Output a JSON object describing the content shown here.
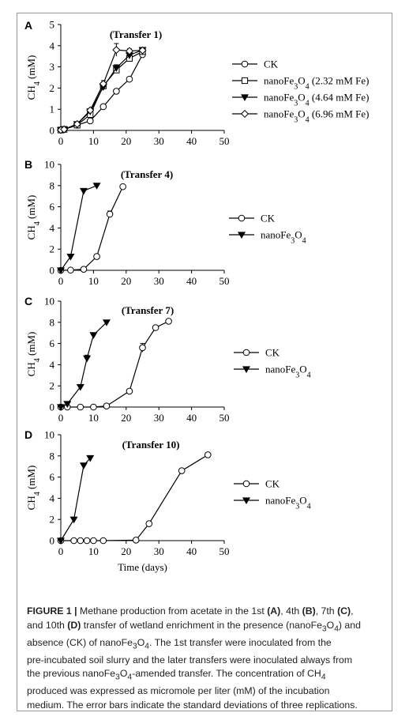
{
  "chart_data": [
    {
      "type": "line",
      "panel": "A",
      "title": "(Transfer 1)",
      "xlabel": "",
      "ylabel": "CH4 (mM)",
      "xlim": [
        0,
        50
      ],
      "ylim": [
        0,
        5
      ],
      "xticks": [
        0,
        10,
        20,
        30,
        40,
        50
      ],
      "yticks": [
        0,
        1,
        2,
        3,
        4,
        5
      ],
      "grid": false,
      "legend_position": "right",
      "series": [
        {
          "name": "CK",
          "marker": "circle-open",
          "x": [
            0,
            1,
            5,
            9,
            13,
            17,
            21,
            25
          ],
          "y": [
            0.02,
            0.05,
            0.25,
            0.45,
            1.12,
            1.85,
            2.42,
            3.58
          ],
          "err": [
            0,
            0,
            0.03,
            0.05,
            0.08,
            0.08,
            0.1,
            0.1
          ]
        },
        {
          "name": "nanoFe3O4 (2.32 mM Fe)",
          "marker": "square-open",
          "x": [
            0,
            1,
            5,
            9,
            13,
            17,
            21,
            25
          ],
          "y": [
            0.02,
            0.05,
            0.25,
            0.75,
            2.1,
            2.85,
            3.4,
            3.72
          ],
          "err": [
            0,
            0,
            0.03,
            0.08,
            0.12,
            0.12,
            0.1,
            0.1
          ]
        },
        {
          "name": "nanoFe3O4 (4.64 mM Fe)",
          "marker": "triangle-down-filled",
          "x": [
            0,
            1,
            5,
            9,
            13,
            17,
            21,
            25
          ],
          "y": [
            0.02,
            0.05,
            0.3,
            0.9,
            2.05,
            2.95,
            3.55,
            3.8
          ],
          "err": [
            0,
            0,
            0.03,
            0.08,
            0.12,
            0.15,
            0.1,
            0.1
          ]
        },
        {
          "name": "nanoFe3O4 (6.96 mM Fe)",
          "marker": "diamond-open",
          "x": [
            0,
            1,
            5,
            9,
            13,
            17,
            21,
            25
          ],
          "y": [
            0.02,
            0.05,
            0.3,
            0.95,
            2.2,
            3.8,
            3.75,
            3.78
          ],
          "err": [
            0,
            0,
            0.03,
            0.08,
            0.15,
            0.3,
            0.1,
            0.1
          ]
        }
      ]
    },
    {
      "type": "line",
      "panel": "B",
      "title": "(Transfer 4)",
      "xlabel": "",
      "ylabel": "CH4 (mM)",
      "xlim": [
        0,
        50
      ],
      "ylim": [
        0,
        10
      ],
      "xticks": [
        0,
        10,
        20,
        30,
        40,
        50
      ],
      "yticks": [
        0,
        2,
        4,
        6,
        8,
        10
      ],
      "grid": false,
      "legend_position": "right",
      "series": [
        {
          "name": "CK",
          "marker": "circle-open",
          "x": [
            0,
            3,
            7,
            11,
            15,
            19
          ],
          "y": [
            0,
            0.02,
            0.1,
            1.3,
            5.3,
            7.9
          ],
          "err": [
            0,
            0,
            0,
            0.1,
            0.3,
            0.1
          ]
        },
        {
          "name": "nanoFe3O4",
          "marker": "triangle-down-filled",
          "x": [
            0,
            3,
            7,
            11
          ],
          "y": [
            0,
            1.3,
            7.5,
            8.0
          ],
          "err": [
            0,
            0.1,
            0.2,
            0.1
          ]
        }
      ]
    },
    {
      "type": "line",
      "panel": "C",
      "title": "(Transfer 7)",
      "xlabel": "",
      "ylabel": "CH4 (mM)",
      "xlim": [
        0,
        50
      ],
      "ylim": [
        0,
        10
      ],
      "xticks": [
        0,
        10,
        20,
        30,
        40,
        50
      ],
      "yticks": [
        0,
        2,
        4,
        6,
        8,
        10
      ],
      "grid": false,
      "legend_position": "right",
      "series": [
        {
          "name": "CK",
          "marker": "circle-open",
          "x": [
            0,
            2,
            6,
            10,
            14,
            21,
            25,
            29,
            33
          ],
          "y": [
            0,
            0,
            0,
            0,
            0.1,
            1.5,
            5.6,
            7.5,
            8.1
          ],
          "err": [
            0,
            0,
            0,
            0,
            0,
            0.1,
            0.4,
            0.2,
            0.1
          ]
        },
        {
          "name": "nanoFe3O4",
          "marker": "triangle-down-filled",
          "x": [
            0,
            2,
            6,
            8,
            10,
            14
          ],
          "y": [
            0,
            0.3,
            1.9,
            4.6,
            6.8,
            8.0
          ],
          "err": [
            0,
            0,
            0.1,
            0.3,
            0.2,
            0.1
          ]
        }
      ]
    },
    {
      "type": "line",
      "panel": "D",
      "title": "(Transfer 10)",
      "xlabel": "Time (days)",
      "ylabel": "CH4 (mM)",
      "xlim": [
        0,
        50
      ],
      "ylim": [
        0,
        10
      ],
      "xticks": [
        0,
        10,
        20,
        30,
        40,
        50
      ],
      "yticks": [
        0,
        2,
        4,
        6,
        8,
        10
      ],
      "grid": false,
      "legend_position": "right",
      "series": [
        {
          "name": "CK",
          "marker": "circle-open",
          "x": [
            0,
            4,
            6,
            8,
            10,
            13,
            23,
            27,
            37,
            45
          ],
          "y": [
            0,
            0,
            0,
            0,
            0,
            0,
            0.05,
            1.6,
            6.6,
            8.1
          ],
          "err": [
            0,
            0,
            0,
            0,
            0,
            0,
            0,
            0.1,
            0.1,
            0.1
          ]
        },
        {
          "name": "nanoFe3O4",
          "marker": "triangle-down-filled",
          "x": [
            0,
            4,
            7,
            9
          ],
          "y": [
            0,
            2.0,
            7.1,
            7.8
          ],
          "err": [
            0,
            0.1,
            0.2,
            0.2
          ]
        }
      ]
    }
  ],
  "caption": {
    "line1_a": "FIGURE 1 |",
    "line1_b": " Methane production  from acetate in the 1st ",
    "line1_c": "(A)",
    "line1_d": ", 4th ",
    "line1_e": "(B)",
    "line1_f": ", 7th ",
    "line1_g": "(C)",
    "line1_h": ",",
    "line2_a": "and 10th ",
    "line2_b": "(D)",
    "line2_c": " transfer of wetland enrichment in the presence (nanoFe",
    "line2_d": "3",
    "line2_e": "O",
    "line2_f": "4",
    "line2_g": ") and",
    "line3_a": "absence (CK) of nanoFe",
    "line3_b": "3",
    "line3_c": "O",
    "line3_d": "4",
    "line3_e": ". The 1st transfer were inoculated from the",
    "line4": "pre-incubated soil slurry and the later transfers were inoculated always from",
    "line5_a": "the previous nanoFe",
    "line5_b": "3",
    "line5_c": "O",
    "line5_d": "4",
    "line5_e": "-amended transfer. The concentration of CH",
    "line5_f": "4",
    "line6": "produced was expressed as micromole per liter (mM) of the incubation",
    "line7": "medium. The error bars indicate the standard deviations of three replications."
  }
}
